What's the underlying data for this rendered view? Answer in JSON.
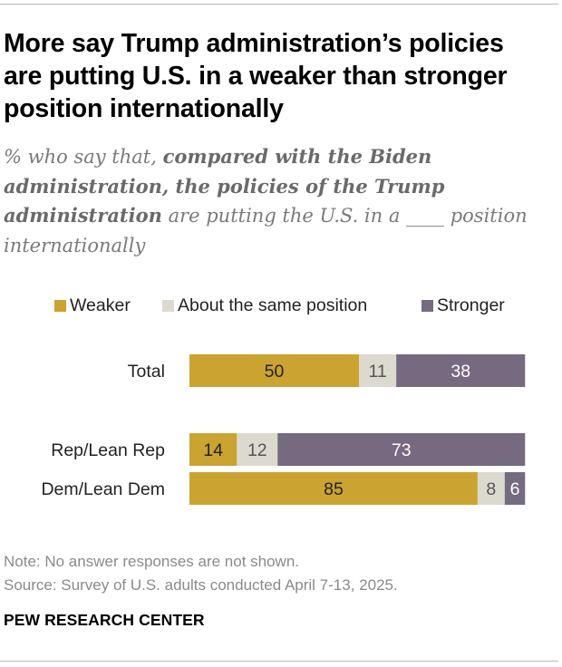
{
  "title": "More say Trump administration’s policies are putting U.S. in a weaker than stronger position internationally",
  "subtitle": {
    "intro": "% who say that, ",
    "emphasis": "compared with the Biden administration, the policies of the Trump administration",
    "outro": " are putting the U.S. in a ____ position internationally"
  },
  "legend": [
    {
      "label": "Weaker",
      "color": "#cba330"
    },
    {
      "label": "About the same position",
      "color": "#dcd9cf"
    },
    {
      "label": "Stronger",
      "color": "#756a80"
    }
  ],
  "chart_data": {
    "type": "bar",
    "orientation": "horizontal",
    "stacked": true,
    "title": "More say Trump administration’s policies are putting U.S. in a weaker than stronger position internationally",
    "categories": [
      "Total",
      "Rep/Lean Rep",
      "Dem/Lean Dem"
    ],
    "series": [
      {
        "name": "Weaker",
        "color": "#cba330",
        "values": [
          50,
          14,
          85
        ]
      },
      {
        "name": "About the same position",
        "color": "#dcd9cf",
        "values": [
          11,
          12,
          8
        ]
      },
      {
        "name": "Stronger",
        "color": "#756a80",
        "values": [
          38,
          73,
          6
        ]
      }
    ],
    "xlim": [
      0,
      100
    ],
    "label_colors": {
      "Weaker": "#222222",
      "About the same position": "#555555",
      "Stronger": "#ffffff"
    }
  },
  "notes": {
    "note": "Note: No answer responses are not shown.",
    "source": "Source: Survey of U.S. adults conducted April 7-13, 2025."
  },
  "brand": "PEW RESEARCH CENTER"
}
